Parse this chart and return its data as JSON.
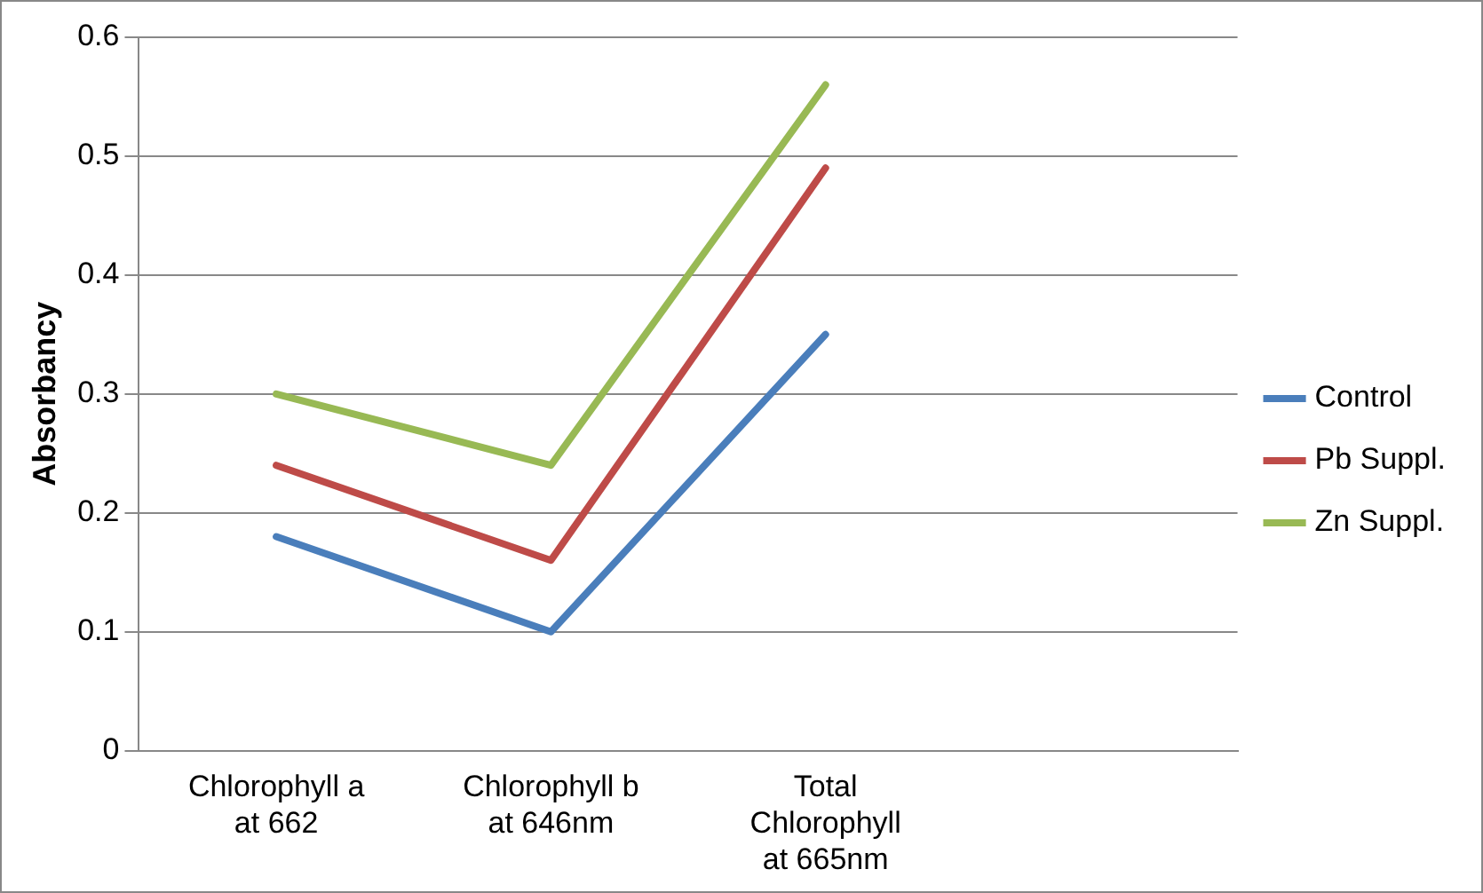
{
  "chart_data": {
    "type": "line",
    "ylabel": "Absorbancy",
    "categories": [
      "Chlorophyll a at 662",
      "Chlorophyll b at 646nm",
      "Total Chlorophyll at 665nm",
      null
    ],
    "series": [
      {
        "name": "Control",
        "color": "#4a7ebb",
        "values": [
          0.18,
          0.1,
          0.35,
          null
        ]
      },
      {
        "name": "Pb Suppl.",
        "color": "#be4b48",
        "values": [
          0.24,
          0.16,
          0.49,
          null
        ]
      },
      {
        "name": "Zn Suppl.",
        "color": "#98b954",
        "values": [
          0.3,
          0.24,
          0.56,
          null
        ]
      }
    ],
    "ylim": [
      0,
      0.6
    ],
    "yticks": [
      0,
      0.1,
      0.2,
      0.3,
      0.4,
      0.5,
      0.6
    ],
    "grid": "y",
    "legend": "right",
    "marker": "none",
    "line_style": "solid"
  }
}
